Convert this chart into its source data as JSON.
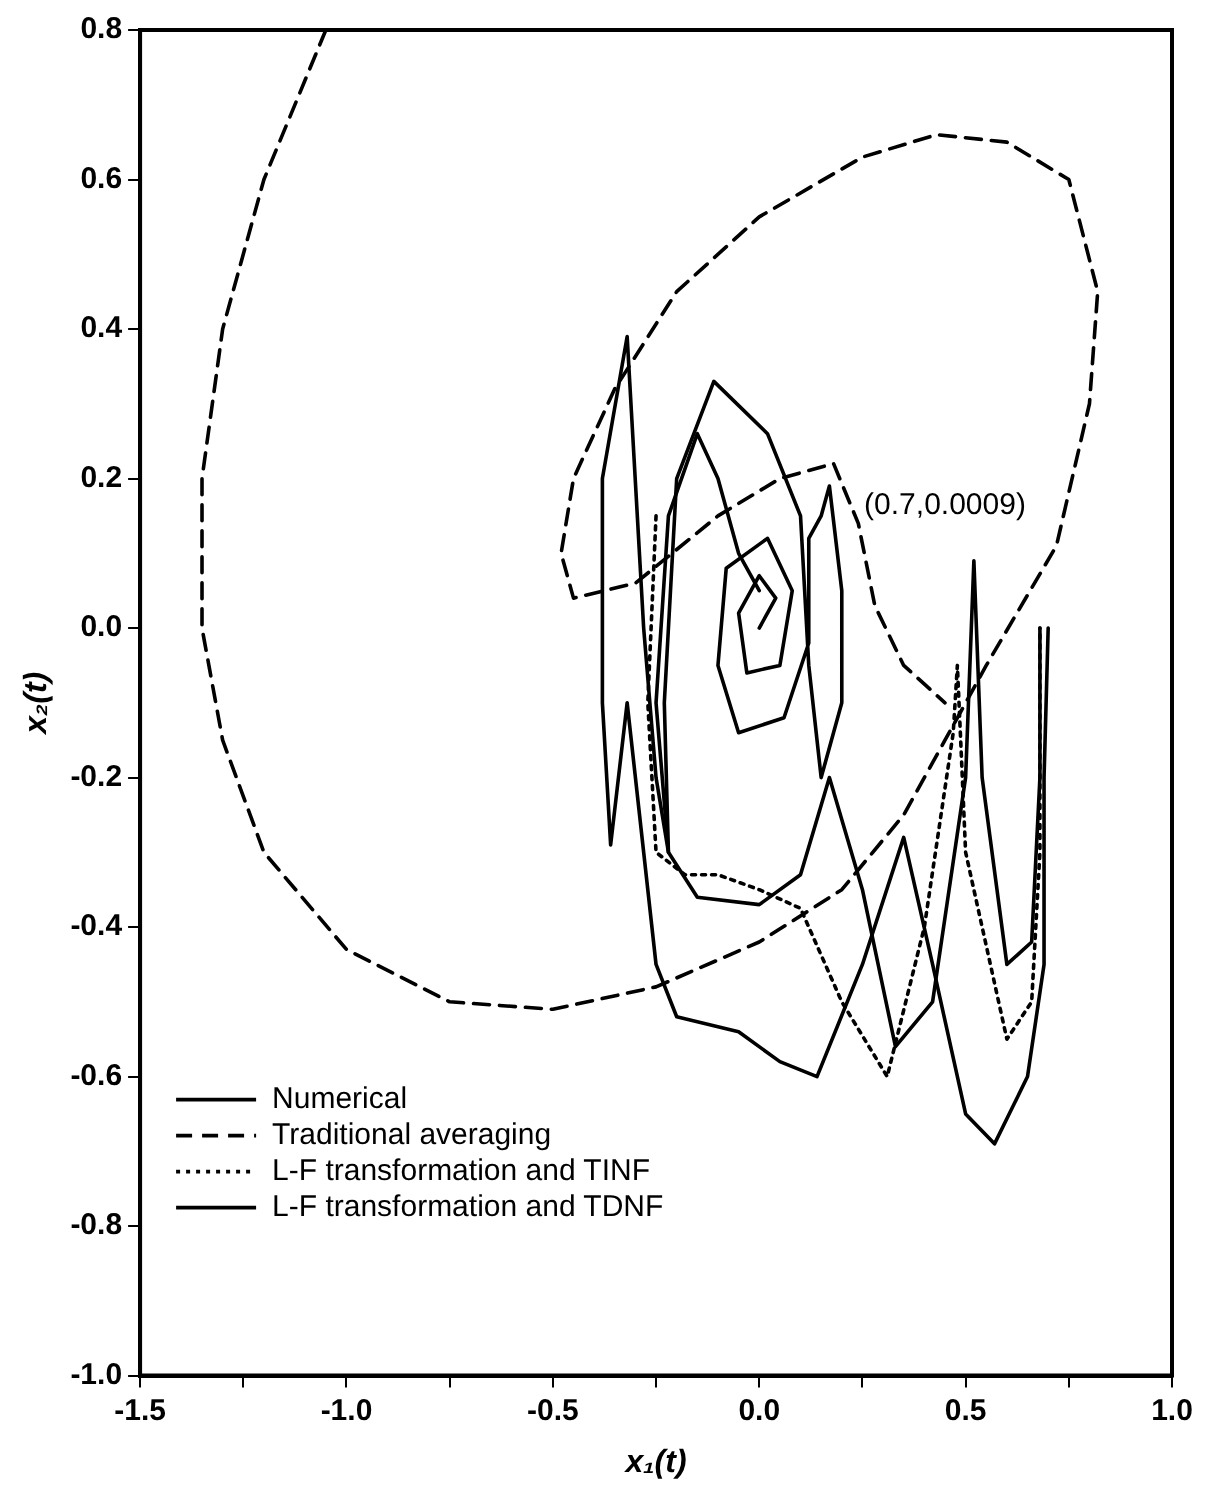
{
  "chart_data": {
    "type": "line",
    "xlabel": "x₁(t)",
    "ylabel": "x₂(t)",
    "xlim": [
      -1.5,
      1.0
    ],
    "ylim": [
      -1.0,
      0.8
    ],
    "xticks": [
      {
        "value": -1.5,
        "label": "-1.5"
      },
      {
        "value": -1.25,
        "label": null
      },
      {
        "value": -1.0,
        "label": "-1.0"
      },
      {
        "value": -0.75,
        "label": null
      },
      {
        "value": -0.5,
        "label": "-0.5"
      },
      {
        "value": -0.25,
        "label": null
      },
      {
        "value": 0,
        "label": "0.0"
      },
      {
        "value": 0.25,
        "label": null
      },
      {
        "value": 0.5,
        "label": "0.5"
      },
      {
        "value": 0.75,
        "label": null
      },
      {
        "value": 1.0,
        "label": "1.0"
      }
    ],
    "yticks": [
      {
        "value": -1.0,
        "label": "-1.0"
      },
      {
        "value": -0.8,
        "label": "-0.8"
      },
      {
        "value": -0.6,
        "label": "-0.6"
      },
      {
        "value": -0.4,
        "label": "-0.4"
      },
      {
        "value": -0.2,
        "label": "-0.2"
      },
      {
        "value": 0,
        "label": "0.0"
      },
      {
        "value": 0.2,
        "label": "0.2"
      },
      {
        "value": 0.4,
        "label": "0.4"
      },
      {
        "value": 0.6,
        "label": "0.6"
      },
      {
        "value": 0.8,
        "label": "0.8"
      }
    ],
    "grid": false,
    "legend": "bottom left",
    "marker": "none",
    "annotations": [
      "(0.7,0.0009)"
    ],
    "series": [
      {
        "name": "Numerical",
        "color": "#000000",
        "line_style": "solid",
        "x": [
          0.0,
          0.04,
          0.0,
          -0.05,
          -0.03,
          0.05,
          0.08,
          0.02,
          -0.08,
          -0.1,
          -0.05,
          0.06,
          0.12,
          0.12,
          0.15,
          0.17,
          0.2,
          0.2,
          0.15,
          0.12,
          0.1,
          0.02,
          -0.11,
          -0.2,
          -0.23,
          -0.22,
          -0.25,
          -0.28,
          -0.32,
          -0.38,
          -0.38,
          -0.36,
          -0.32,
          -0.28,
          -0.25,
          -0.2,
          -0.05,
          0.05,
          0.14,
          0.25,
          0.35,
          0.42,
          0.5,
          0.57,
          0.65,
          0.69,
          0.69,
          0.7
        ],
        "values": [
          0.0,
          0.04,
          0.07,
          0.02,
          -0.06,
          -0.05,
          0.05,
          0.12,
          0.08,
          -0.05,
          -0.14,
          -0.12,
          -0.02,
          0.12,
          0.15,
          0.19,
          0.05,
          -0.1,
          -0.2,
          -0.05,
          0.15,
          0.26,
          0.33,
          0.2,
          -0.1,
          -0.3,
          -0.2,
          0.0,
          0.39,
          0.2,
          -0.1,
          -0.29,
          -0.1,
          -0.3,
          -0.45,
          -0.52,
          -0.54,
          -0.58,
          -0.6,
          -0.45,
          -0.28,
          -0.45,
          -0.65,
          -0.69,
          -0.6,
          -0.45,
          -0.2,
          0.0
        ]
      },
      {
        "name": "Traditional averaging",
        "color": "#000000",
        "line_style": "dashed",
        "x": [
          -1.05,
          -1.2,
          -1.3,
          -1.35,
          -1.35,
          -1.3,
          -1.2,
          -1.0,
          -0.75,
          -0.5,
          -0.25,
          0.0,
          0.2,
          0.35,
          0.45,
          0.55,
          0.72,
          0.8,
          0.82,
          0.75,
          0.6,
          0.43,
          0.25,
          0.0,
          -0.2,
          -0.35,
          -0.45,
          -0.48,
          -0.45,
          -0.3,
          -0.1,
          0.05,
          0.18,
          0.24,
          0.28,
          0.35,
          0.45
        ],
        "values": [
          0.8,
          0.6,
          0.4,
          0.2,
          0.0,
          -0.15,
          -0.3,
          -0.43,
          -0.5,
          -0.51,
          -0.48,
          -0.42,
          -0.35,
          -0.25,
          -0.15,
          -0.05,
          0.11,
          0.3,
          0.45,
          0.6,
          0.65,
          0.66,
          0.63,
          0.55,
          0.45,
          0.32,
          0.2,
          0.1,
          0.04,
          0.06,
          0.15,
          0.2,
          0.22,
          0.14,
          0.03,
          -0.05,
          -0.1
        ]
      },
      {
        "name": "L-F transformation and TINF",
        "color": "#000000",
        "line_style": "dotted",
        "x": [
          -0.25,
          -0.27,
          -0.25,
          -0.18,
          -0.1,
          0.0,
          0.1,
          0.2,
          0.31,
          0.4,
          0.47,
          0.48,
          0.5,
          0.6,
          0.66,
          0.68,
          0.68
        ],
        "values": [
          0.15,
          -0.1,
          -0.3,
          -0.33,
          -0.33,
          -0.35,
          -0.375,
          -0.5,
          -0.6,
          -0.4,
          -0.14,
          -0.05,
          -0.3,
          -0.55,
          -0.5,
          -0.3,
          0.0
        ]
      },
      {
        "name": "L-F transformation and TDNF",
        "color": "#000000",
        "line_style": "solid",
        "x": [
          0.0,
          -0.05,
          -0.1,
          -0.15,
          -0.22,
          -0.25,
          -0.22,
          -0.15,
          0.0,
          0.1,
          0.17,
          0.25,
          0.33,
          0.42,
          0.5,
          0.52,
          0.54,
          0.6,
          0.66,
          0.68,
          0.68
        ],
        "values": [
          0.05,
          0.1,
          0.2,
          0.26,
          0.15,
          -0.1,
          -0.3,
          -0.36,
          -0.37,
          -0.33,
          -0.2,
          -0.35,
          -0.56,
          -0.5,
          -0.2,
          0.09,
          -0.2,
          -0.45,
          -0.42,
          -0.2,
          0.0
        ]
      }
    ]
  }
}
